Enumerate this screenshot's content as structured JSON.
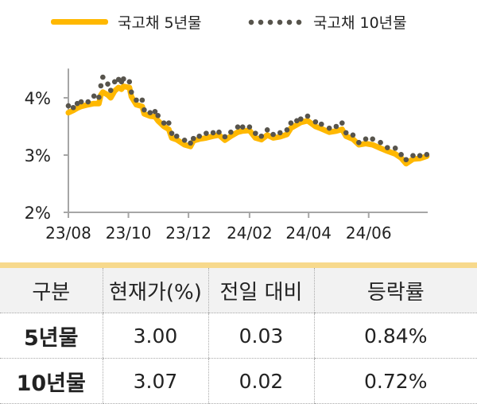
{
  "chart_data": {
    "type": "line",
    "ylim": [
      2,
      4.4
    ],
    "yticks": [
      "2%",
      "3%",
      "4%"
    ],
    "xticks": [
      "23/08",
      "23/10",
      "23/12",
      "24/02",
      "24/04",
      "24/06"
    ],
    "xtick_dates": [
      "2023-08-01",
      "2023-10-01",
      "2023-12-01",
      "2024-02-01",
      "2024-04-01",
      "2024-06-01"
    ],
    "x": [
      "2023-08-01",
      "2023-08-06",
      "2023-08-10",
      "2023-08-14",
      "2023-08-21",
      "2023-08-27",
      "2023-09-01",
      "2023-09-03",
      "2023-09-05",
      "2023-09-10",
      "2023-09-13",
      "2023-09-17",
      "2023-09-21",
      "2023-09-24",
      "2023-09-26",
      "2023-10-02",
      "2023-10-04",
      "2023-10-09",
      "2023-10-15",
      "2023-10-17",
      "2023-10-23",
      "2023-10-28",
      "2023-10-31",
      "2023-11-06",
      "2023-11-11",
      "2023-11-14",
      "2023-11-19",
      "2023-11-27",
      "2023-12-03",
      "2023-12-06",
      "2023-12-12",
      "2023-12-19",
      "2023-12-26",
      "2024-01-01",
      "2024-01-07",
      "2024-01-13",
      "2024-01-20",
      "2024-01-25",
      "2024-02-01",
      "2024-02-07",
      "2024-02-13",
      "2024-02-19",
      "2024-02-25",
      "2024-03-03",
      "2024-03-10",
      "2024-03-14",
      "2024-03-20",
      "2024-03-24",
      "2024-03-31",
      "2024-04-08",
      "2024-04-14",
      "2024-04-22",
      "2024-04-29",
      "2024-05-05",
      "2024-05-09",
      "2024-05-16",
      "2024-05-22",
      "2024-05-29",
      "2024-06-05",
      "2024-06-13",
      "2024-06-20",
      "2024-06-28",
      "2024-07-04",
      "2024-07-09",
      "2024-07-16",
      "2024-07-23",
      "2024-07-30"
    ],
    "series": [
      {
        "name": "국고채 5년물",
        "style": "line",
        "color": "#FFB800",
        "values": [
          3.74,
          3.78,
          3.82,
          3.85,
          3.88,
          3.9,
          3.9,
          4.05,
          4.1,
          4.05,
          4.0,
          4.12,
          4.18,
          4.15,
          4.2,
          4.18,
          4.02,
          3.88,
          3.85,
          3.72,
          3.68,
          3.67,
          3.6,
          3.5,
          3.45,
          3.3,
          3.27,
          3.18,
          3.15,
          3.25,
          3.28,
          3.3,
          3.33,
          3.35,
          3.26,
          3.33,
          3.4,
          3.42,
          3.43,
          3.3,
          3.27,
          3.35,
          3.3,
          3.32,
          3.36,
          3.47,
          3.53,
          3.57,
          3.6,
          3.5,
          3.46,
          3.4,
          3.42,
          3.45,
          3.33,
          3.28,
          3.18,
          3.2,
          3.18,
          3.12,
          3.07,
          3.02,
          2.95,
          2.85,
          2.93,
          2.94,
          2.98
        ]
      },
      {
        "name": "국고채 10년물",
        "style": "dots",
        "color": "#57544c",
        "values": [
          3.86,
          3.83,
          3.9,
          3.93,
          3.93,
          4.03,
          4.01,
          4.21,
          4.36,
          4.24,
          4.13,
          4.28,
          4.32,
          4.28,
          4.33,
          4.28,
          4.1,
          3.96,
          3.96,
          3.79,
          3.74,
          3.76,
          3.69,
          3.56,
          3.56,
          3.38,
          3.33,
          3.26,
          3.21,
          3.29,
          3.33,
          3.38,
          3.39,
          3.4,
          3.32,
          3.4,
          3.49,
          3.49,
          3.49,
          3.38,
          3.33,
          3.44,
          3.36,
          3.39,
          3.44,
          3.56,
          3.6,
          3.63,
          3.68,
          3.58,
          3.54,
          3.47,
          3.5,
          3.56,
          3.39,
          3.35,
          3.22,
          3.28,
          3.28,
          3.22,
          3.13,
          3.12,
          3.01,
          2.92,
          2.99,
          2.99,
          3.01
        ]
      }
    ]
  },
  "table": {
    "headers": [
      "구분",
      "현재가(%)",
      "전일 대비",
      "등락률"
    ],
    "rows": [
      [
        "5년물",
        "3.00",
        "0.03",
        "0.84%"
      ],
      [
        "10년물",
        "3.07",
        "0.02",
        "0.72%"
      ]
    ]
  }
}
